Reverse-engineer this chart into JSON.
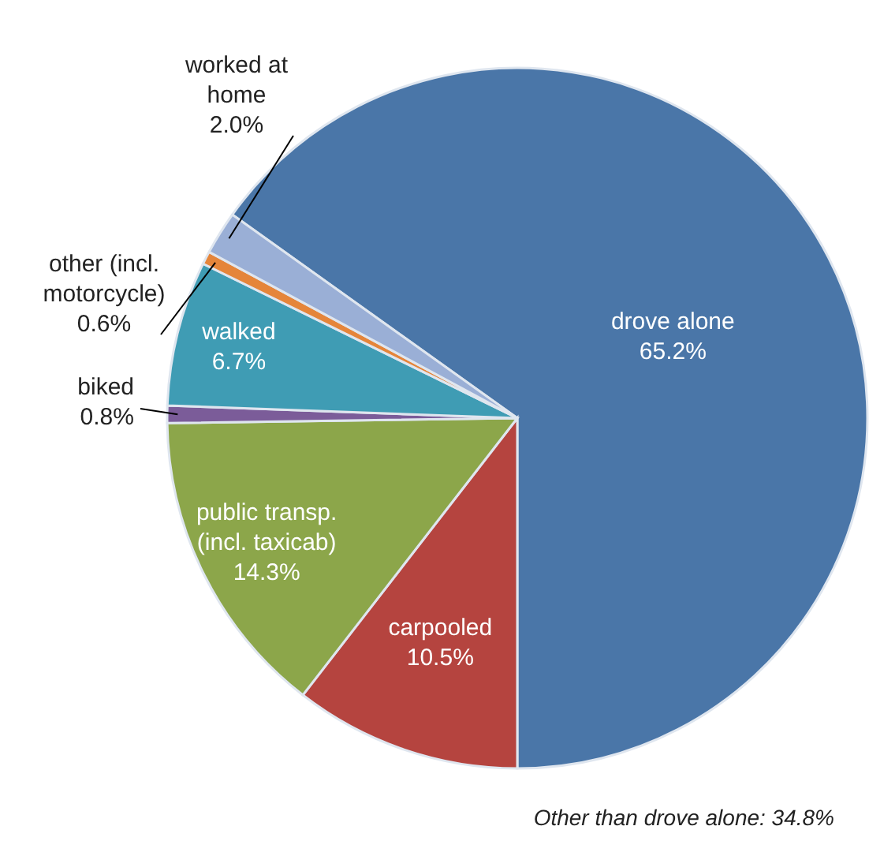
{
  "chart_data": {
    "type": "pie",
    "categories": [
      "drove alone",
      "carpooled",
      "public transp. (incl. taxicab)",
      "biked",
      "walked",
      "other (incl. motorcycle)",
      "worked at home"
    ],
    "values": [
      65.2,
      10.5,
      14.3,
      0.8,
      6.7,
      0.6,
      2.0
    ],
    "value_labels": [
      "65.2%",
      "10.5%",
      "14.3%",
      "0.8%",
      "6.7%",
      "0.6%",
      "2.0%"
    ],
    "colors": [
      "#4a76a8",
      "#b5443f",
      "#8ca64a",
      "#7b5c99",
      "#3f9cb4",
      "#e5853a",
      "#9aafd6"
    ],
    "annotations": [
      "Other than drove alone: 34.8%"
    ]
  }
}
